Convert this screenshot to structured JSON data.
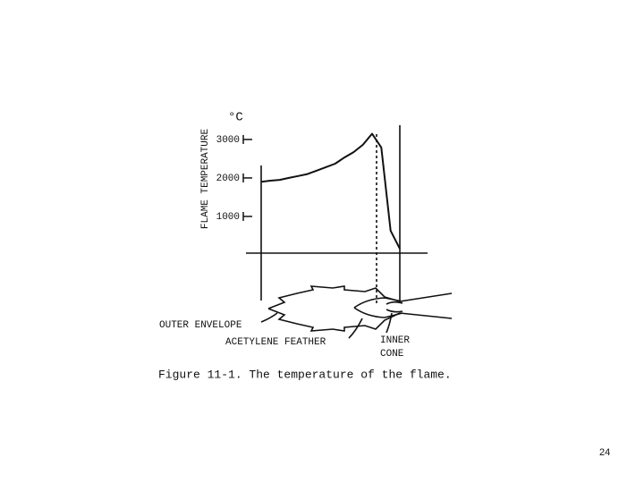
{
  "chart_data": {
    "type": "line",
    "y_label": "FLAME TEMPERATURE",
    "y_unit": "°C",
    "caption": "Figure 11-1.  The temperature of the flame.",
    "categories": [
      null,
      null,
      null,
      null,
      null,
      null,
      null,
      null,
      null,
      null,
      null,
      null,
      null,
      null,
      null,
      null
    ],
    "values": [
      1900,
      1930,
      1950,
      2000,
      2050,
      2100,
      2190,
      2280,
      2370,
      2530,
      2670,
      2860,
      3150,
      2790,
      630,
      160
    ],
    "color": "#111111",
    "ylim": [
      0,
      3300
    ],
    "yticks": [
      1000,
      2000,
      3000
    ],
    "annotations": [
      "OUTER ENVELOPE",
      "ACETYLENE FEATHER",
      "INNER",
      "CONE"
    ]
  },
  "page_number": "24"
}
